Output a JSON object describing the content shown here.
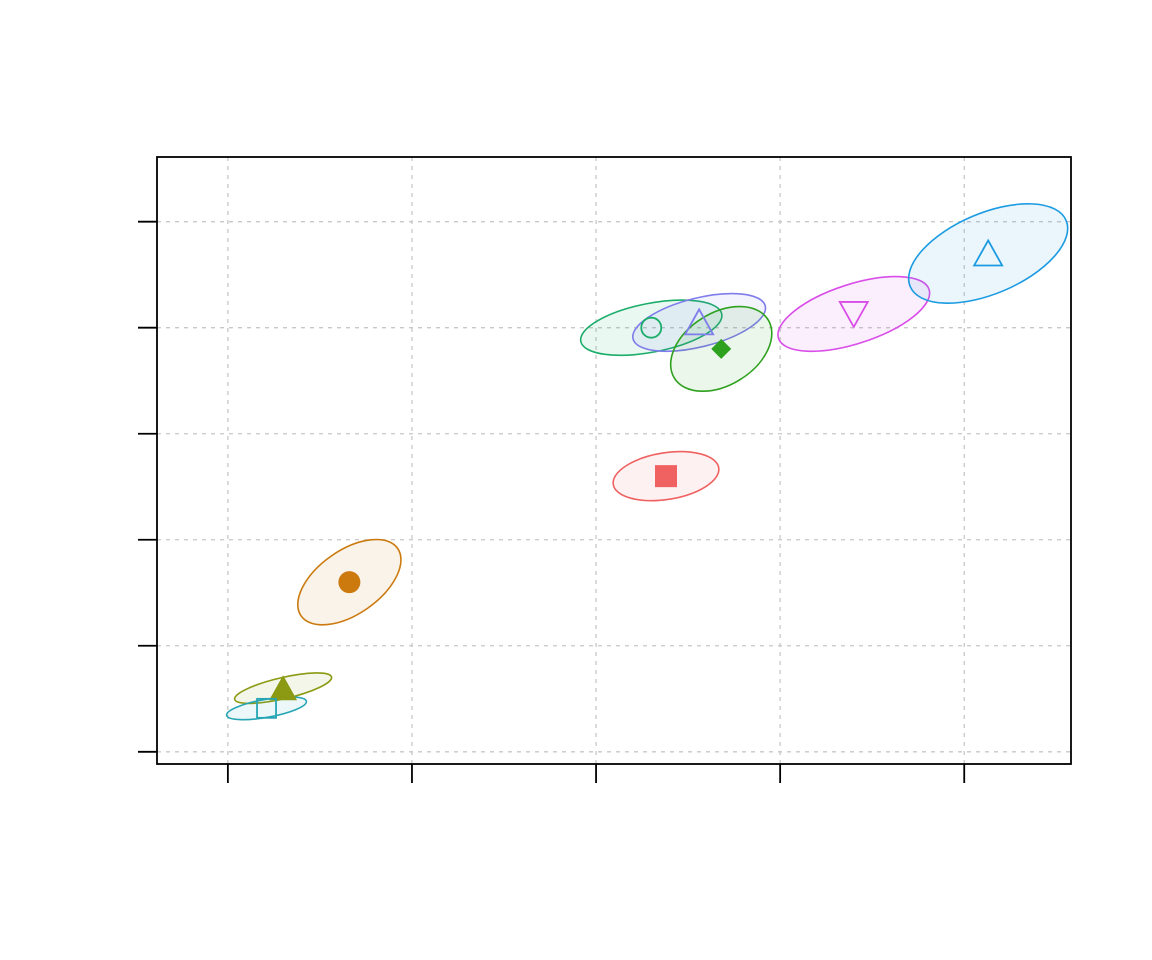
{
  "chart_data": {
    "type": "scatter",
    "title": "",
    "xlabel": "",
    "ylabel": "",
    "x_ticks": [
      0,
      1,
      2,
      3,
      4
    ],
    "y_ticks": [
      0,
      1,
      2,
      3,
      4,
      5
    ],
    "xlim": [
      -0.385,
      4.58
    ],
    "ylim": [
      -0.115,
      5.61
    ],
    "grid": true,
    "series": [
      {
        "x": 0.3,
        "y": 0.6,
        "marker": "filled-triangle",
        "color": "#8B9A12",
        "ellipse": {
          "rx": 0.27,
          "ry": 0.1,
          "angle_deg": 13
        }
      },
      {
        "x": 0.21,
        "y": 0.41,
        "marker": "open-square",
        "color": "#26A5B4",
        "ellipse": {
          "rx": 0.22,
          "ry": 0.085,
          "angle_deg": 10
        }
      },
      {
        "x": 0.66,
        "y": 1.6,
        "marker": "filled-circle",
        "color": "#CC7A0E",
        "ellipse": {
          "rx": 0.32,
          "ry": 0.3,
          "angle_deg": 35
        }
      },
      {
        "x": 2.38,
        "y": 2.6,
        "marker": "filled-square",
        "color": "#F06161",
        "ellipse": {
          "rx": 0.29,
          "ry": 0.22,
          "angle_deg": 9
        }
      },
      {
        "x": 2.3,
        "y": 4.0,
        "marker": "open-circle",
        "color": "#1BAD6A",
        "ellipse": {
          "rx": 0.39,
          "ry": 0.23,
          "angle_deg": 11
        }
      },
      {
        "x": 2.56,
        "y": 4.05,
        "marker": "open-triangle",
        "color": "#7F7CEB",
        "ellipse": {
          "rx": 0.37,
          "ry": 0.23,
          "angle_deg": 14
        }
      },
      {
        "x": 2.68,
        "y": 3.8,
        "marker": "filled-diamond",
        "color": "#2EA11E",
        "ellipse": {
          "rx": 0.3,
          "ry": 0.34,
          "angle_deg": 32
        }
      },
      {
        "x": 3.4,
        "y": 4.13,
        "marker": "open-down-triangle",
        "color": "#D94DE9",
        "ellipse": {
          "rx": 0.43,
          "ry": 0.28,
          "angle_deg": 18
        }
      },
      {
        "x": 4.13,
        "y": 4.7,
        "marker": "open-triangle",
        "color": "#1C9BE2",
        "ellipse": {
          "rx": 0.46,
          "ry": 0.38,
          "angle_deg": 23
        }
      }
    ]
  }
}
